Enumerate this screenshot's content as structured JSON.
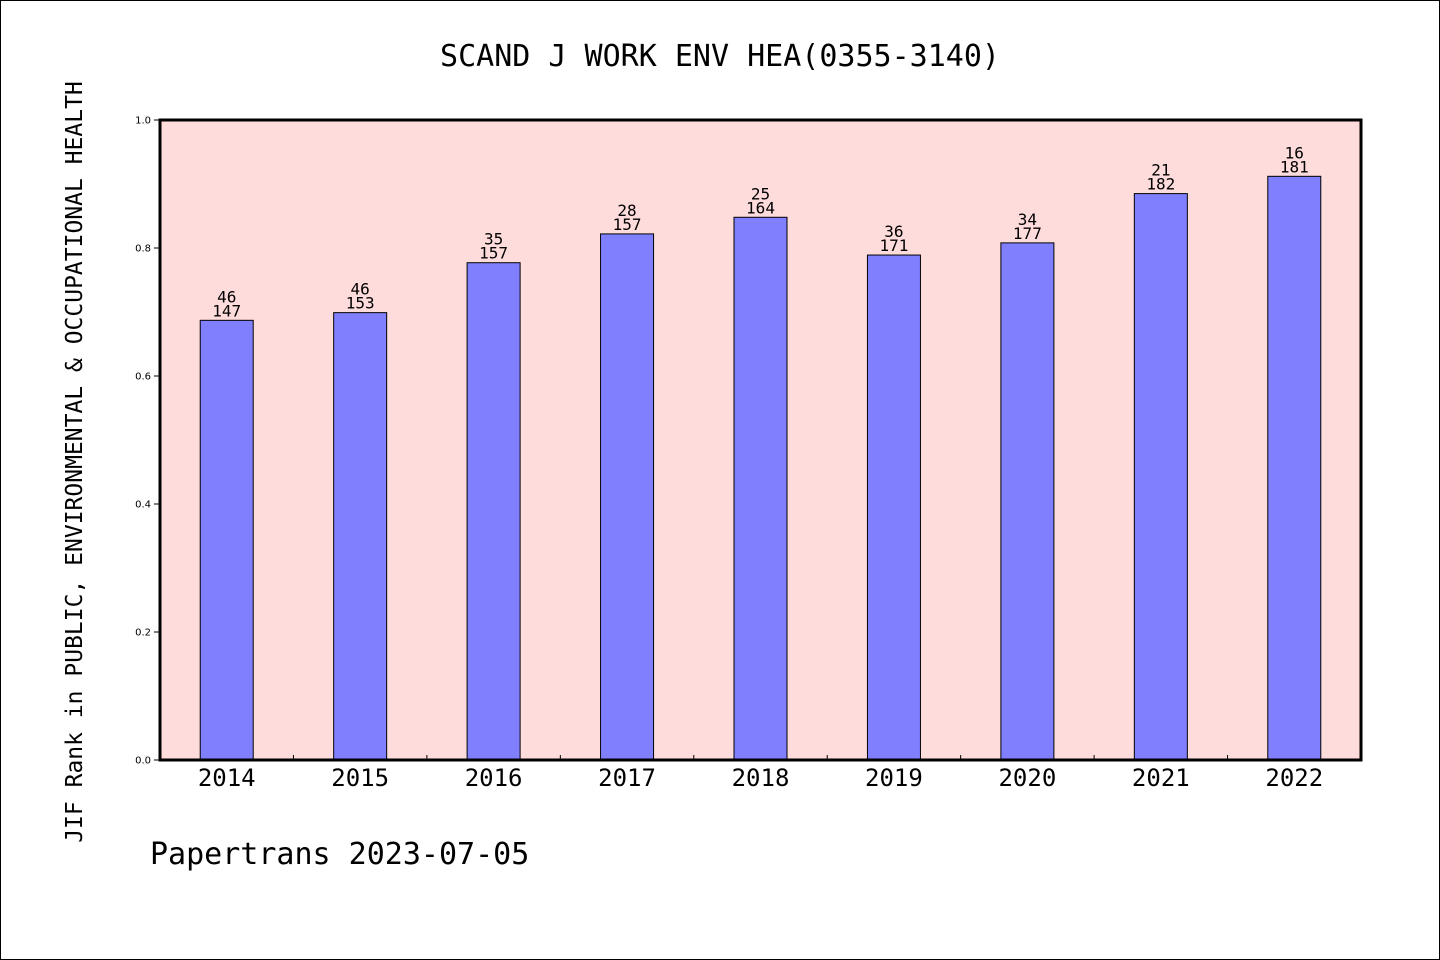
{
  "chart_data": {
    "type": "bar",
    "title": "SCAND J WORK ENV HEA(0355-3140)",
    "ylabel": "JIF Rank in PUBLIC, ENVIRONMENTAL & OCCUPATIONAL HEALTH",
    "xlabel": "",
    "footer": "Papertrans 2023-07-05",
    "categories": [
      "2014",
      "2015",
      "2016",
      "2017",
      "2018",
      "2019",
      "2020",
      "2021",
      "2022"
    ],
    "values": [
      0.687,
      0.699,
      0.777,
      0.822,
      0.848,
      0.789,
      0.808,
      0.885,
      0.912
    ],
    "rank_labels": [
      "46",
      "46",
      "35",
      "28",
      "25",
      "36",
      "34",
      "21",
      "16"
    ],
    "total_labels": [
      "147",
      "153",
      "157",
      "157",
      "164",
      "171",
      "177",
      "182",
      "181"
    ],
    "ylim": [
      0,
      1.0
    ],
    "yticks": [
      "0.0",
      "0.2",
      "0.4",
      "0.6",
      "0.8",
      "1.0"
    ],
    "grid": false,
    "colors": {
      "plot_background": "#ffdcdc",
      "bar_fill": "#8080ff",
      "bar_stroke": "#000000",
      "axis": "#000000"
    }
  }
}
